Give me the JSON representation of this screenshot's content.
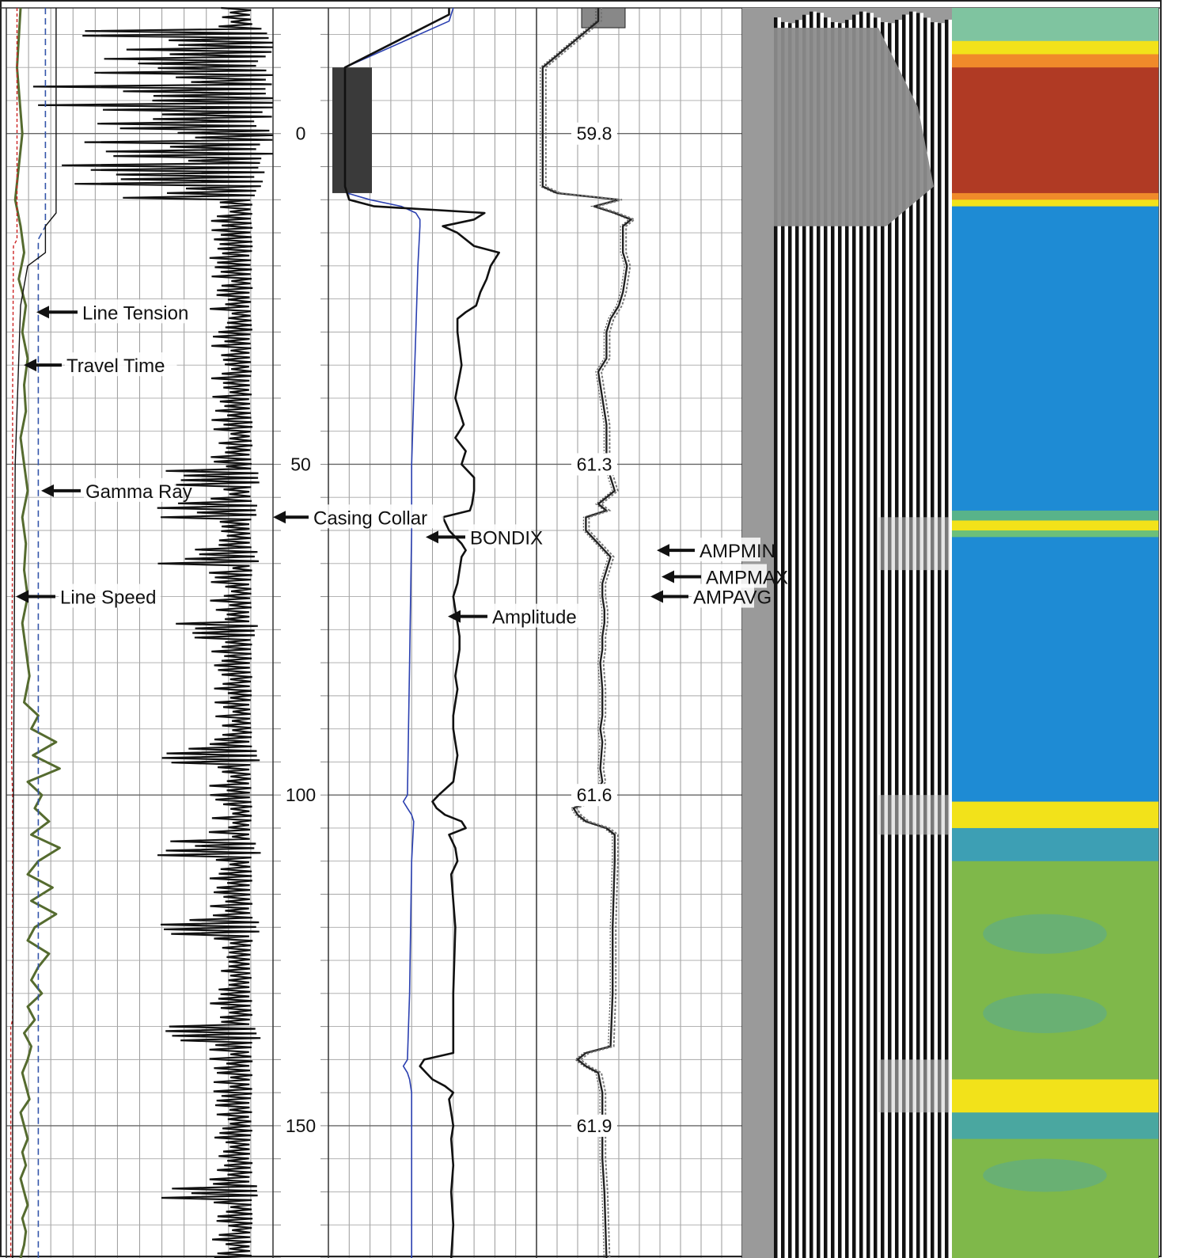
{
  "chart_data": {
    "type": "line",
    "title": "",
    "xlabel": "",
    "ylabel": "",
    "depth_range": [
      -19,
      170
    ],
    "depth_ticks": [
      0,
      50,
      100,
      150
    ],
    "tt_ticks": [
      59.8,
      61.3,
      61.6,
      61.9
    ],
    "colors": {
      "gamma_ray": "#556b2f",
      "line_speed": "#cc2222",
      "line_tension": "#3355aa",
      "bondix": "#2a3fb0",
      "curve": "#111111",
      "cbl_dark": "#3a3a3a",
      "vdl_bg": "#9a9a9a",
      "map_red": "#b03a24",
      "map_blue": "#1e8bd4",
      "map_yellow": "#f2e21a",
      "map_green": "#7fb84a"
    },
    "annotations": [
      {
        "id": "line-tension",
        "text": "Line Tension",
        "track": 1,
        "depth": 27
      },
      {
        "id": "travel-time",
        "text": "Travel Time",
        "track": 1,
        "depth": 35
      },
      {
        "id": "gamma-ray",
        "text": "Gamma Ray",
        "track": 1,
        "depth": 54
      },
      {
        "id": "casing-collar",
        "text": "Casing Collar",
        "track": 1,
        "depth": 58
      },
      {
        "id": "bondix",
        "text": "BONDIX",
        "track": 2,
        "depth": 61
      },
      {
        "id": "line-speed",
        "text": "Line Speed",
        "track": 1,
        "depth": 70
      },
      {
        "id": "amplitude",
        "text": "Amplitude",
        "track": 2,
        "depth": 73
      },
      {
        "id": "ampmin",
        "text": "AMPMIN",
        "track": 3,
        "depth": 63
      },
      {
        "id": "ampmax",
        "text": "AMPMAX",
        "track": 3,
        "depth": 67
      },
      {
        "id": "ampavg",
        "text": "AMPAVG",
        "track": 3,
        "depth": 70
      }
    ],
    "series": [
      {
        "name": "Gamma Ray",
        "track": 1,
        "x": [
          -19,
          -10,
          0,
          10,
          14,
          18,
          22,
          26,
          30,
          34,
          38,
          42,
          46,
          50,
          54,
          58,
          62,
          66,
          70,
          74,
          78,
          82,
          86,
          88,
          90,
          92,
          94,
          96,
          98,
          100,
          102,
          104,
          106,
          108,
          110,
          112,
          114,
          116,
          118,
          120,
          122,
          124,
          126,
          128,
          130,
          132,
          134,
          136,
          138,
          140,
          142,
          144,
          146,
          148,
          150,
          152,
          154,
          156,
          158,
          160,
          162,
          164,
          166,
          168,
          170
        ],
        "y": [
          8,
          6,
          9,
          5,
          8,
          10,
          7,
          11,
          9,
          12,
          10,
          11,
          8,
          10,
          12,
          9,
          11,
          10,
          12,
          9,
          11,
          13,
          10,
          18,
          14,
          28,
          15,
          30,
          12,
          20,
          16,
          24,
          14,
          30,
          18,
          12,
          26,
          14,
          28,
          16,
          12,
          24,
          18,
          14,
          20,
          12,
          16,
          10,
          14,
          12,
          9,
          11,
          13,
          8,
          10,
          12,
          9,
          11,
          8,
          10,
          12,
          9,
          11,
          10,
          8
        ]
      },
      {
        "name": "Line Speed",
        "track": 1,
        "x": [
          -19,
          0,
          16,
          17,
          40,
          60,
          90,
          95,
          100,
          130,
          134,
          135,
          140,
          150,
          170
        ],
        "y": [
          6,
          6,
          6,
          4,
          3.5,
          3.5,
          3,
          3,
          3.5,
          3.5,
          3.5,
          2.5,
          2.5,
          2.5,
          2.5
        ]
      },
      {
        "name": "Line Tension",
        "track": 1,
        "x": [
          -19,
          -10,
          0,
          10,
          14,
          16,
          20,
          30,
          60,
          90,
          120,
          150,
          170
        ],
        "y": [
          22,
          22,
          22,
          22,
          22,
          18,
          18,
          18,
          18,
          18,
          18,
          18,
          18
        ]
      },
      {
        "name": "Travel Time",
        "track": 1,
        "x": [
          -19,
          0,
          12,
          14,
          18,
          20,
          26,
          50,
          100,
          150,
          170
        ],
        "y": [
          28,
          28,
          28,
          22,
          22,
          12,
          8,
          5,
          4,
          3.5,
          3.5
        ]
      },
      {
        "name": "BONDIX",
        "track": 2,
        "x": [
          -19,
          -17,
          -10,
          0,
          8,
          9,
          10,
          11,
          12,
          13,
          14,
          20,
          30,
          40,
          50,
          60,
          80,
          100,
          101,
          102,
          103,
          104,
          110,
          130,
          140,
          141,
          142,
          143,
          145,
          150,
          160,
          170
        ],
        "y": [
          60,
          58,
          8,
          8,
          8,
          9,
          20,
          35,
          42,
          44,
          44,
          43,
          42,
          41,
          40,
          40,
          39,
          38,
          36,
          38,
          40,
          41,
          40,
          39,
          38,
          36,
          38,
          39,
          40,
          40,
          40,
          40
        ]
      },
      {
        "name": "Amplitude",
        "track": 2,
        "x": [
          -19,
          -18,
          -10,
          0,
          8,
          10,
          11,
          12,
          13,
          14,
          15,
          17,
          18,
          20,
          22,
          24,
          26,
          27,
          28,
          30,
          35,
          40,
          44,
          46,
          48,
          50,
          52,
          54,
          56,
          57,
          58,
          60,
          62,
          63,
          64,
          66,
          68,
          70,
          72,
          74,
          76,
          78,
          80,
          82,
          84,
          86,
          88,
          90,
          92,
          94,
          96,
          98,
          100,
          101,
          102,
          103,
          104,
          105,
          106,
          108,
          110,
          112,
          120,
          130,
          139,
          140,
          141,
          142,
          143,
          144,
          145,
          146,
          148,
          150,
          152,
          156,
          160,
          165,
          170
        ],
        "y": [
          58,
          58,
          8,
          8,
          8,
          10,
          22,
          75,
          70,
          55,
          62,
          70,
          82,
          78,
          76,
          73,
          71,
          66,
          62,
          62,
          64,
          61,
          65,
          61,
          66,
          64,
          70,
          70,
          69,
          68,
          55,
          58,
          64,
          66,
          64,
          63,
          62,
          60,
          61,
          62,
          63,
          63,
          62,
          61,
          62,
          61,
          60,
          60,
          61,
          62,
          61,
          60,
          53,
          50,
          52,
          56,
          64,
          66,
          58,
          61,
          62,
          59,
          61,
          60,
          60,
          46,
          44,
          47,
          50,
          56,
          60,
          58,
          59,
          60,
          59,
          60,
          59,
          60,
          59
        ]
      },
      {
        "name": "AMPAVG",
        "track": 3,
        "x": [
          -19,
          -17,
          -10,
          0,
          5,
          8,
          9,
          10,
          11,
          12,
          13,
          14,
          16,
          18,
          20,
          24,
          26,
          28,
          30,
          34,
          36,
          40,
          44,
          48,
          50,
          52,
          54,
          56,
          57,
          58,
          60,
          62,
          64,
          66,
          68,
          70,
          72,
          74,
          76,
          78,
          80,
          84,
          88,
          90,
          92,
          96,
          98,
          99,
          100,
          101,
          102,
          103,
          104,
          105,
          106,
          110,
          120,
          130,
          138,
          139,
          140,
          141,
          142,
          145,
          150,
          155,
          160,
          170
        ],
        "y": [
          30,
          30,
          3,
          3,
          3,
          3,
          10,
          40,
          28,
          38,
          46,
          42,
          42,
          42,
          44,
          42,
          40,
          36,
          34,
          34,
          30,
          32,
          34,
          34,
          34,
          36,
          38,
          30,
          34,
          24,
          24,
          30,
          36,
          34,
          32,
          32,
          33,
          33,
          32,
          32,
          31,
          32,
          32,
          31,
          32,
          31,
          32,
          30,
          28,
          26,
          18,
          20,
          24,
          34,
          38,
          38,
          37,
          37,
          36,
          24,
          20,
          24,
          30,
          32,
          32,
          32,
          33,
          34
        ]
      }
    ]
  }
}
